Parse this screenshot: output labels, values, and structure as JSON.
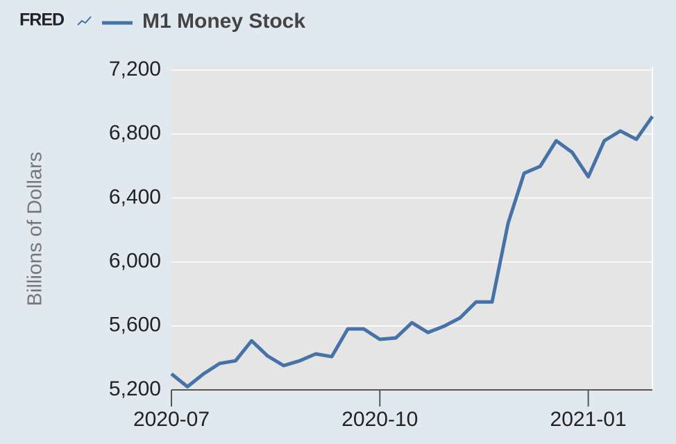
{
  "logo": "FRED",
  "chart_data": {
    "type": "line",
    "y_label": "Billions of Dollars",
    "categories": [
      "2020-07",
      null,
      null,
      null,
      null,
      null,
      null,
      null,
      null,
      null,
      null,
      null,
      null,
      "2020-10",
      null,
      null,
      null,
      null,
      null,
      null,
      null,
      null,
      null,
      null,
      null,
      null,
      "2021-01",
      null,
      null,
      null,
      null
    ],
    "series": [
      {
        "name": "M1 Money Stock",
        "color": "#4572a7",
        "values": [
          5300,
          5220,
          5300,
          5365,
          5382,
          5507,
          5412,
          5352,
          5382,
          5425,
          5408,
          5581,
          5581,
          5516,
          5525,
          5620,
          5559,
          5598,
          5650,
          5750,
          5750,
          6243,
          6555,
          6598,
          6758,
          6685,
          6533,
          6758,
          6819,
          6767,
          6910
        ]
      }
    ],
    "ylim": [
      5200,
      7200
    ],
    "yticks": [
      {
        "value": 5200,
        "label": "5,200"
      },
      {
        "value": 5600,
        "label": "5,600"
      },
      {
        "value": 6000,
        "label": "6,000"
      },
      {
        "value": 6400,
        "label": "6,400"
      },
      {
        "value": 6800,
        "label": "6,800"
      },
      {
        "value": 7200,
        "label": "7,200"
      }
    ],
    "grid": true
  }
}
